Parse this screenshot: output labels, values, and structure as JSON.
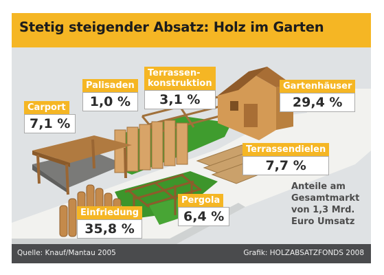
{
  "title": "Stetig steigender Absatz: Holz im Garten",
  "note": "Anteile am\nGesamtmarkt\nvon 1,3 Mrd.\nEuro Umsatz",
  "source": "Quelle: Knauf/Mantau 2005",
  "credit": "Grafik: HOLZABSATZFONDS 2008",
  "colors": {
    "accent": "#f5b624",
    "footer": "#4a4b4d",
    "background": "#dfe2e4"
  },
  "chart_data": {
    "type": "table",
    "title": "Stetig steigender Absatz: Holz im Garten",
    "unit": "%",
    "categories": [
      "Carport",
      "Palisaden",
      "Terrassen-\nkonstruktion",
      "Gartenhäuser",
      "Terrassendielen",
      "Einfriedung",
      "Pergola"
    ],
    "values": [
      7.1,
      1.0,
      3.1,
      29.4,
      7.7,
      35.8,
      6.4
    ],
    "value_labels": [
      "7,1 %",
      "1,0 %",
      "3,1 %",
      "29,4 %",
      "7,7 %",
      "35,8 %",
      "6,4 %"
    ]
  }
}
